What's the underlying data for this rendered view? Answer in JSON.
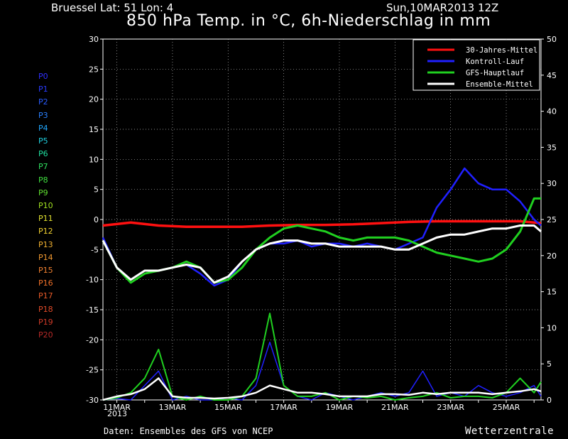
{
  "header": {
    "location": "Bruessel  Lat: 51 Lon: 4",
    "datetime": "Sun,10MAR2013 12Z",
    "title": "850 hPa Temp. in °C, 6h-Niederschlag in mm"
  },
  "footer": {
    "credit": "Daten: Ensembles des GFS von NCEP",
    "brand": "Wetterzentrale",
    "year": "2013"
  },
  "members": [
    {
      "label": "P0",
      "color": "#3030ff"
    },
    {
      "label": "P1",
      "color": "#2a3cff"
    },
    {
      "label": "P2",
      "color": "#2a5cff"
    },
    {
      "label": "P3",
      "color": "#2a80ff"
    },
    {
      "label": "P4",
      "color": "#20a8ff"
    },
    {
      "label": "P5",
      "color": "#20d0e0"
    },
    {
      "label": "P6",
      "color": "#20e0a0"
    },
    {
      "label": "P7",
      "color": "#30e060"
    },
    {
      "label": "P8",
      "color": "#40e040"
    },
    {
      "label": "P9",
      "color": "#60e030"
    },
    {
      "label": "P10",
      "color": "#a0e020"
    },
    {
      "label": "P11",
      "color": "#e0e030"
    },
    {
      "label": "P12",
      "color": "#f0d030"
    },
    {
      "label": "P13",
      "color": "#f0b030"
    },
    {
      "label": "P14",
      "color": "#f09830"
    },
    {
      "label": "P15",
      "color": "#f08030"
    },
    {
      "label": "P16",
      "color": "#f07028"
    },
    {
      "label": "P17",
      "color": "#e85a28"
    },
    {
      "label": "P18",
      "color": "#e04a28"
    },
    {
      "label": "P19",
      "color": "#d03a28"
    },
    {
      "label": "P20",
      "color": "#b82a28"
    }
  ],
  "chart_data": {
    "type": "line",
    "x_ticks": [
      "11MAR",
      "13MAR",
      "15MAR",
      "17MAR",
      "19MAR",
      "21MAR",
      "23MAR",
      "25MAR"
    ],
    "x_tick_days": [
      11,
      13,
      15,
      17,
      19,
      21,
      23,
      25
    ],
    "x_range_days": [
      10.5,
      26.25
    ],
    "y_left": {
      "range": [
        -30,
        30
      ],
      "ticks": [
        -30,
        -25,
        -20,
        -15,
        -10,
        -5,
        0,
        5,
        10,
        15,
        20,
        25,
        30
      ],
      "unit": "°C"
    },
    "y_right": {
      "range": [
        0,
        50
      ],
      "ticks": [
        0,
        5,
        10,
        15,
        20,
        25,
        30,
        35,
        40,
        45,
        50
      ],
      "unit": "mm"
    },
    "grid": true,
    "legend_position": "top-right",
    "legend": [
      {
        "name": "30-Jahres-Mittel",
        "color": "#ff1010"
      },
      {
        "name": "Kontroll-Lauf",
        "color": "#2020ff"
      },
      {
        "name": "GFS-Hauptlauf",
        "color": "#20d020"
      },
      {
        "name": "Ensemble-Mittel",
        "color": "#ffffff"
      }
    ],
    "series": [
      {
        "name": "30-Jahres-Mittel",
        "color": "#ff1010",
        "width": 3.5,
        "axis": "left",
        "x": [
          10.5,
          11.5,
          12.5,
          13.5,
          14.5,
          15.5,
          16.5,
          17.5,
          18.5,
          19.5,
          20.5,
          21.5,
          22.5,
          23.5,
          24.5,
          25.5,
          26.25
        ],
        "y": [
          -1.0,
          -0.5,
          -1.0,
          -1.2,
          -1.2,
          -1.2,
          -1.0,
          -0.9,
          -0.9,
          -0.8,
          -0.6,
          -0.4,
          -0.3,
          -0.3,
          -0.3,
          -0.3,
          -0.6
        ]
      },
      {
        "name": "Kontroll-Lauf",
        "color": "#2020ff",
        "width": 2.5,
        "axis": "left",
        "x": [
          10.5,
          11,
          11.5,
          12,
          12.5,
          13,
          13.5,
          14,
          14.5,
          15,
          15.5,
          16,
          16.5,
          17,
          17.5,
          18,
          18.5,
          19,
          19.5,
          20,
          20.5,
          21,
          21.5,
          22,
          22.5,
          23,
          23.5,
          24,
          24.5,
          25,
          25.5,
          26,
          26.25
        ],
        "y": [
          -3,
          -8,
          -10,
          -8.5,
          -8.5,
          -8,
          -7.5,
          -9,
          -11,
          -10,
          -7,
          -5,
          -4,
          -4,
          -3.5,
          -4.5,
          -4,
          -4,
          -4.5,
          -4,
          -4.5,
          -5,
          -4,
          -3,
          2,
          5,
          8.5,
          6,
          5,
          5,
          3,
          0,
          -1
        ]
      },
      {
        "name": "GFS-Hauptlauf",
        "color": "#20d020",
        "width": 3,
        "axis": "left",
        "x": [
          10.5,
          11,
          11.5,
          12,
          12.5,
          13,
          13.5,
          14,
          14.5,
          15,
          15.5,
          16,
          16.5,
          17,
          17.5,
          18,
          18.5,
          19,
          19.5,
          20,
          20.5,
          21,
          21.5,
          22,
          22.5,
          23,
          23.5,
          24,
          24.5,
          25,
          25.5,
          26,
          26.25
        ],
        "y": [
          -3.5,
          -8,
          -10.5,
          -9,
          -8.5,
          -8,
          -7,
          -8,
          -10.5,
          -10,
          -8,
          -5,
          -3,
          -1.5,
          -1,
          -1.5,
          -2,
          -3,
          -3.5,
          -3,
          -3,
          -3,
          -3.5,
          -4.5,
          -5.5,
          -6,
          -6.5,
          -7,
          -6.5,
          -5,
          -2,
          3.5,
          3.5
        ]
      },
      {
        "name": "Ensemble-Mittel",
        "color": "#ffffff",
        "width": 3,
        "axis": "left",
        "x": [
          10.5,
          11,
          11.5,
          12,
          12.5,
          13,
          13.5,
          14,
          14.5,
          15,
          15.5,
          16,
          16.5,
          17,
          17.5,
          18,
          18.5,
          19,
          19.5,
          20,
          20.5,
          21,
          21.5,
          22,
          22.5,
          23,
          23.5,
          24,
          24.5,
          25,
          25.5,
          26,
          26.25
        ],
        "y": [
          -3.5,
          -8,
          -10,
          -8.5,
          -8.5,
          -8,
          -7.5,
          -8,
          -10.5,
          -9.5,
          -7,
          -5,
          -4,
          -3.5,
          -3.5,
          -4,
          -4,
          -4.5,
          -4.5,
          -4.5,
          -4.5,
          -5,
          -5,
          -4,
          -3,
          -2.5,
          -2.5,
          -2,
          -1.5,
          -1.5,
          -1,
          -1,
          -2
        ]
      },
      {
        "name": "Kontroll-Lauf Niederschlag",
        "color": "#2020ff",
        "width": 1.5,
        "axis": "right",
        "x": [
          10.5,
          11,
          11.5,
          12,
          12.5,
          13,
          13.5,
          14,
          14.5,
          15,
          15.5,
          16,
          16.5,
          17,
          17.5,
          18,
          18.5,
          19,
          19.5,
          20,
          20.5,
          21,
          21.5,
          22,
          22.5,
          23,
          23.5,
          24,
          24.5,
          25,
          25.5,
          26,
          26.25
        ],
        "y": [
          0,
          0.2,
          0,
          2,
          4,
          0,
          0.5,
          0,
          0,
          0.3,
          0,
          2,
          8,
          2,
          0.5,
          0,
          1,
          0.5,
          0,
          0.5,
          1,
          0.5,
          1,
          4,
          0.5,
          1,
          0.5,
          2,
          1,
          0.5,
          1,
          2,
          0.5
        ]
      },
      {
        "name": "GFS-Hauptlauf Niederschlag",
        "color": "#20d020",
        "width": 2,
        "axis": "right",
        "x": [
          10.5,
          11,
          11.5,
          12,
          12.5,
          13,
          13.5,
          14,
          14.5,
          15,
          15.5,
          16,
          16.5,
          17,
          17.5,
          18,
          18.5,
          19,
          19.5,
          20,
          20.5,
          21,
          21.5,
          22,
          22.5,
          23,
          23.5,
          24,
          24.5,
          25,
          25.5,
          26,
          26.25
        ],
        "y": [
          0,
          0.3,
          1,
          3,
          7,
          0.5,
          0,
          0.5,
          0,
          0,
          0.5,
          3,
          12,
          2,
          0.5,
          0.5,
          1,
          0,
          0.5,
          0.3,
          0.5,
          0,
          0.3,
          0.5,
          1,
          0.3,
          0.5,
          0.5,
          0.3,
          1,
          3,
          1,
          2.5
        ]
      },
      {
        "name": "Ensemble-Mittel Niederschlag",
        "color": "#ffffff",
        "width": 2.5,
        "axis": "right",
        "x": [
          10.5,
          11,
          11.5,
          12,
          12.5,
          13,
          13.5,
          14,
          14.5,
          15,
          15.5,
          16,
          16.5,
          17,
          17.5,
          18,
          18.5,
          19,
          19.5,
          20,
          20.5,
          21,
          21.5,
          22,
          22.5,
          23,
          23.5,
          24,
          24.5,
          25,
          25.5,
          26,
          26.25
        ],
        "y": [
          0,
          0.5,
          0.8,
          1.5,
          3,
          0.5,
          0.3,
          0.3,
          0.2,
          0.3,
          0.5,
          1,
          2,
          1.5,
          1,
          1,
          0.8,
          0.5,
          0.5,
          0.5,
          0.8,
          0.8,
          0.7,
          1,
          0.8,
          1,
          1,
          1,
          0.8,
          1,
          1.2,
          1.5,
          1.2
        ]
      }
    ]
  }
}
